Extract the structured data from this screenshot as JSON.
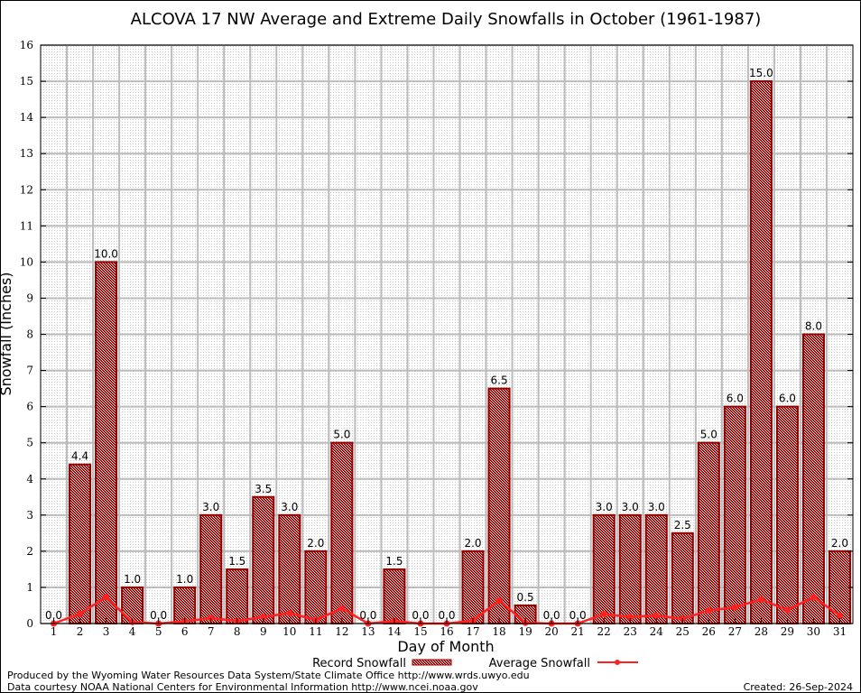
{
  "chart_data": {
    "type": "bar",
    "title": "ALCOVA 17 NW Average and Extreme Daily Snowfalls in October (1961-1987)",
    "xlabel": "Day of Month",
    "ylabel": "Snowfall (Inches)",
    "ylim": [
      0,
      16
    ],
    "yticks": [
      0,
      1,
      2,
      3,
      4,
      5,
      6,
      7,
      8,
      9,
      10,
      11,
      12,
      13,
      14,
      15,
      16
    ],
    "categories": [
      "1",
      "2",
      "3",
      "4",
      "5",
      "6",
      "7",
      "8",
      "9",
      "10",
      "11",
      "12",
      "13",
      "14",
      "15",
      "16",
      "17",
      "18",
      "19",
      "20",
      "21",
      "22",
      "23",
      "24",
      "25",
      "26",
      "27",
      "28",
      "29",
      "30",
      "31"
    ],
    "series": [
      {
        "name": "Record Snowfall",
        "type": "bar",
        "color": "#b00000",
        "values": [
          0.0,
          4.4,
          10.0,
          1.0,
          0.0,
          1.0,
          3.0,
          1.5,
          3.5,
          3.0,
          2.0,
          5.0,
          0.0,
          1.5,
          0.0,
          0.0,
          2.0,
          6.5,
          0.5,
          0.0,
          0.0,
          3.0,
          3.0,
          3.0,
          2.5,
          5.0,
          6.0,
          15.0,
          6.0,
          8.0,
          2.0
        ]
      },
      {
        "name": "Average Snowfall",
        "type": "line",
        "color": "#ff2020",
        "values": [
          0.0,
          0.27,
          0.73,
          0.04,
          0.0,
          0.06,
          0.15,
          0.07,
          0.18,
          0.29,
          0.1,
          0.42,
          0.0,
          0.07,
          0.0,
          0.0,
          0.08,
          0.64,
          0.02,
          0.0,
          0.0,
          0.26,
          0.18,
          0.22,
          0.13,
          0.36,
          0.45,
          0.67,
          0.37,
          0.73,
          0.22
        ]
      }
    ],
    "grid": true,
    "legend": "bottom"
  },
  "footer": {
    "line1": "Produced by the Wyoming Water Resources Data System/State Climate Office http://www.wrds.uwyo.edu",
    "line2": "Data courtesy NOAA National Centers for Environmental Information http://www.ncei.noaa.gov",
    "created": "Created: 26-Sep-2024"
  }
}
